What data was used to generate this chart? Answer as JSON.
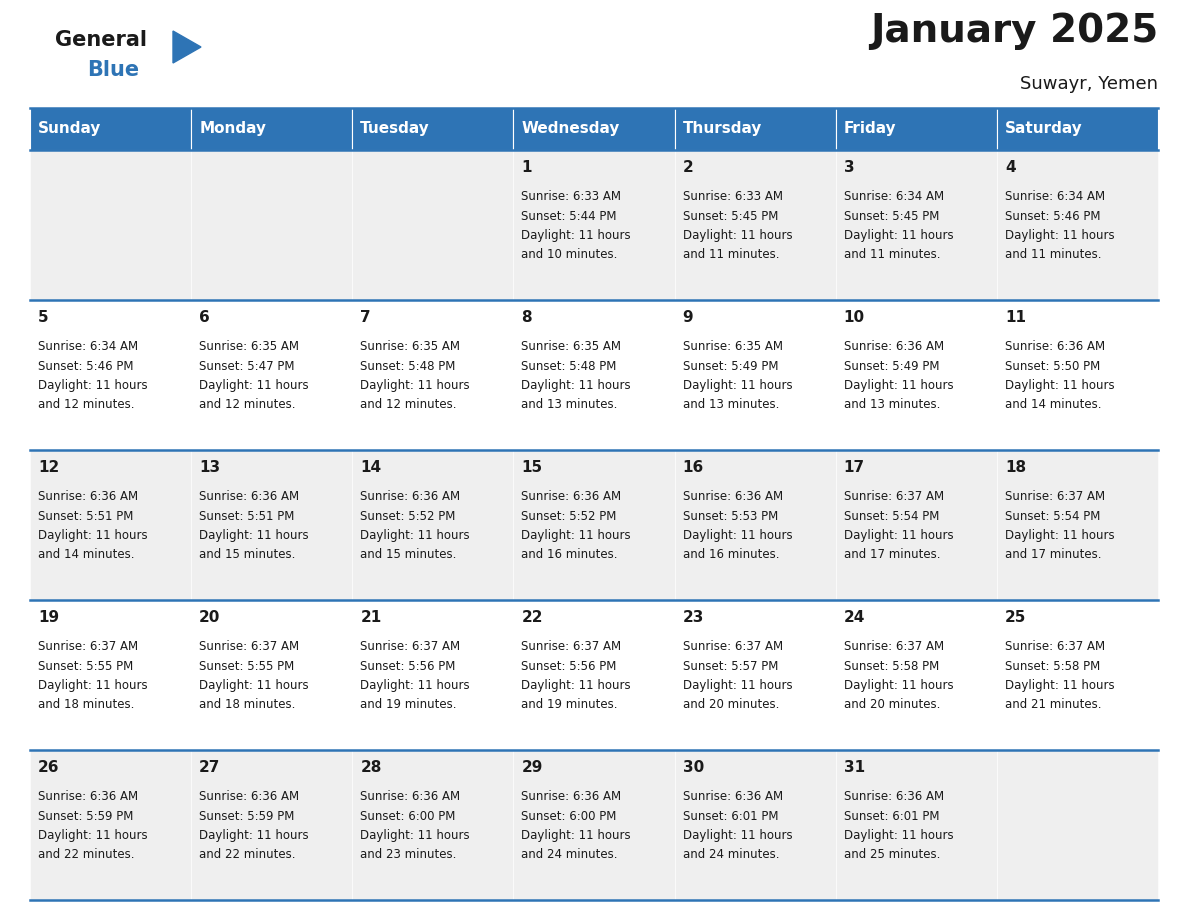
{
  "title": "January 2025",
  "subtitle": "Suwayr, Yemen",
  "header_color": "#2E74B5",
  "header_text_color": "#FFFFFF",
  "cell_bg_even": "#EFEFEF",
  "cell_bg_odd": "#FFFFFF",
  "border_color": "#2E74B5",
  "days_of_week": [
    "Sunday",
    "Monday",
    "Tuesday",
    "Wednesday",
    "Thursday",
    "Friday",
    "Saturday"
  ],
  "calendar_data": [
    [
      {
        "day": "",
        "sunrise": "",
        "sunset": "",
        "daylight_hours": 0,
        "daylight_minutes": 0
      },
      {
        "day": "",
        "sunrise": "",
        "sunset": "",
        "daylight_hours": 0,
        "daylight_minutes": 0
      },
      {
        "day": "",
        "sunrise": "",
        "sunset": "",
        "daylight_hours": 0,
        "daylight_minutes": 0
      },
      {
        "day": "1",
        "sunrise": "6:33 AM",
        "sunset": "5:44 PM",
        "daylight_hours": 11,
        "daylight_minutes": 10
      },
      {
        "day": "2",
        "sunrise": "6:33 AM",
        "sunset": "5:45 PM",
        "daylight_hours": 11,
        "daylight_minutes": 11
      },
      {
        "day": "3",
        "sunrise": "6:34 AM",
        "sunset": "5:45 PM",
        "daylight_hours": 11,
        "daylight_minutes": 11
      },
      {
        "day": "4",
        "sunrise": "6:34 AM",
        "sunset": "5:46 PM",
        "daylight_hours": 11,
        "daylight_minutes": 11
      }
    ],
    [
      {
        "day": "5",
        "sunrise": "6:34 AM",
        "sunset": "5:46 PM",
        "daylight_hours": 11,
        "daylight_minutes": 12
      },
      {
        "day": "6",
        "sunrise": "6:35 AM",
        "sunset": "5:47 PM",
        "daylight_hours": 11,
        "daylight_minutes": 12
      },
      {
        "day": "7",
        "sunrise": "6:35 AM",
        "sunset": "5:48 PM",
        "daylight_hours": 11,
        "daylight_minutes": 12
      },
      {
        "day": "8",
        "sunrise": "6:35 AM",
        "sunset": "5:48 PM",
        "daylight_hours": 11,
        "daylight_minutes": 13
      },
      {
        "day": "9",
        "sunrise": "6:35 AM",
        "sunset": "5:49 PM",
        "daylight_hours": 11,
        "daylight_minutes": 13
      },
      {
        "day": "10",
        "sunrise": "6:36 AM",
        "sunset": "5:49 PM",
        "daylight_hours": 11,
        "daylight_minutes": 13
      },
      {
        "day": "11",
        "sunrise": "6:36 AM",
        "sunset": "5:50 PM",
        "daylight_hours": 11,
        "daylight_minutes": 14
      }
    ],
    [
      {
        "day": "12",
        "sunrise": "6:36 AM",
        "sunset": "5:51 PM",
        "daylight_hours": 11,
        "daylight_minutes": 14
      },
      {
        "day": "13",
        "sunrise": "6:36 AM",
        "sunset": "5:51 PM",
        "daylight_hours": 11,
        "daylight_minutes": 15
      },
      {
        "day": "14",
        "sunrise": "6:36 AM",
        "sunset": "5:52 PM",
        "daylight_hours": 11,
        "daylight_minutes": 15
      },
      {
        "day": "15",
        "sunrise": "6:36 AM",
        "sunset": "5:52 PM",
        "daylight_hours": 11,
        "daylight_minutes": 16
      },
      {
        "day": "16",
        "sunrise": "6:36 AM",
        "sunset": "5:53 PM",
        "daylight_hours": 11,
        "daylight_minutes": 16
      },
      {
        "day": "17",
        "sunrise": "6:37 AM",
        "sunset": "5:54 PM",
        "daylight_hours": 11,
        "daylight_minutes": 17
      },
      {
        "day": "18",
        "sunrise": "6:37 AM",
        "sunset": "5:54 PM",
        "daylight_hours": 11,
        "daylight_minutes": 17
      }
    ],
    [
      {
        "day": "19",
        "sunrise": "6:37 AM",
        "sunset": "5:55 PM",
        "daylight_hours": 11,
        "daylight_minutes": 18
      },
      {
        "day": "20",
        "sunrise": "6:37 AM",
        "sunset": "5:55 PM",
        "daylight_hours": 11,
        "daylight_minutes": 18
      },
      {
        "day": "21",
        "sunrise": "6:37 AM",
        "sunset": "5:56 PM",
        "daylight_hours": 11,
        "daylight_minutes": 19
      },
      {
        "day": "22",
        "sunrise": "6:37 AM",
        "sunset": "5:56 PM",
        "daylight_hours": 11,
        "daylight_minutes": 19
      },
      {
        "day": "23",
        "sunrise": "6:37 AM",
        "sunset": "5:57 PM",
        "daylight_hours": 11,
        "daylight_minutes": 20
      },
      {
        "day": "24",
        "sunrise": "6:37 AM",
        "sunset": "5:58 PM",
        "daylight_hours": 11,
        "daylight_minutes": 20
      },
      {
        "day": "25",
        "sunrise": "6:37 AM",
        "sunset": "5:58 PM",
        "daylight_hours": 11,
        "daylight_minutes": 21
      }
    ],
    [
      {
        "day": "26",
        "sunrise": "6:36 AM",
        "sunset": "5:59 PM",
        "daylight_hours": 11,
        "daylight_minutes": 22
      },
      {
        "day": "27",
        "sunrise": "6:36 AM",
        "sunset": "5:59 PM",
        "daylight_hours": 11,
        "daylight_minutes": 22
      },
      {
        "day": "28",
        "sunrise": "6:36 AM",
        "sunset": "6:00 PM",
        "daylight_hours": 11,
        "daylight_minutes": 23
      },
      {
        "day": "29",
        "sunrise": "6:36 AM",
        "sunset": "6:00 PM",
        "daylight_hours": 11,
        "daylight_minutes": 24
      },
      {
        "day": "30",
        "sunrise": "6:36 AM",
        "sunset": "6:01 PM",
        "daylight_hours": 11,
        "daylight_minutes": 24
      },
      {
        "day": "31",
        "sunrise": "6:36 AM",
        "sunset": "6:01 PM",
        "daylight_hours": 11,
        "daylight_minutes": 25
      },
      {
        "day": "",
        "sunrise": "",
        "sunset": "",
        "daylight_hours": 0,
        "daylight_minutes": 0
      }
    ]
  ],
  "logo_general_color": "#1a1a1a",
  "logo_blue_color": "#2E74B5",
  "title_fontsize": 28,
  "subtitle_fontsize": 13,
  "header_fontsize": 11,
  "day_num_fontsize": 11,
  "cell_text_fontsize": 8.5
}
